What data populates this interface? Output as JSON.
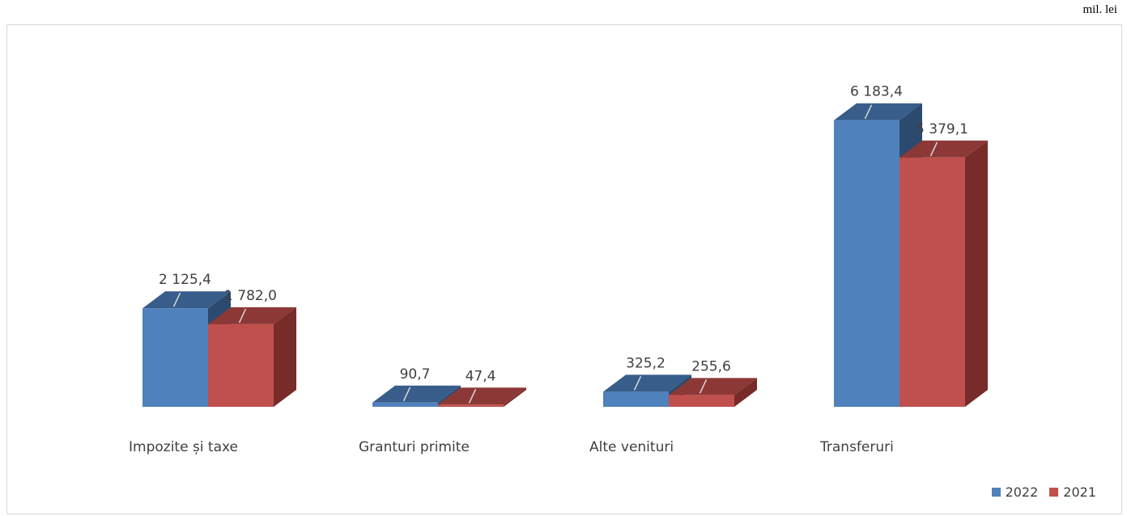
{
  "chart_data": {
    "type": "bar",
    "title": "",
    "unit_label": "mil. lei",
    "categories": [
      "Impozite și taxe",
      "Granturi primite",
      "Alte venituri",
      "Transferuri"
    ],
    "series": [
      {
        "name": "2022",
        "values": [
          2125.4,
          90.7,
          325.2,
          6183.4
        ],
        "labels": [
          "2 125,4",
          "90,7",
          "325,2",
          "6 183,4"
        ],
        "color": "#4f81bd"
      },
      {
        "name": "2021",
        "values": [
          1782.0,
          47.4,
          255.6,
          5379.1
        ],
        "labels": [
          "1 782,0",
          "47,4",
          "255,6",
          "5 379,1"
        ],
        "color": "#c0504d"
      }
    ],
    "legend_position": "bottom-right",
    "grid": false,
    "three_d": true
  }
}
